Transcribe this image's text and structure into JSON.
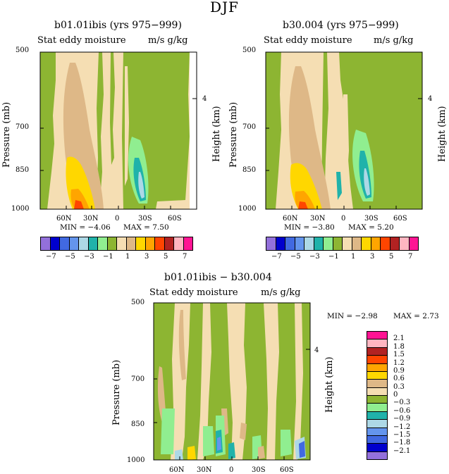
{
  "figure": {
    "title": "DJF"
  },
  "colors": {
    "levels_h": [
      "#9370DB",
      "#0000CD",
      "#4169E1",
      "#6495ED",
      "#ADD8E6",
      "#20B2AA",
      "#90EE90",
      "#8DB532",
      "#F5DEB3",
      "#DEB887",
      "#FFD700",
      "#FFA500",
      "#FF4500",
      "#B22222",
      "#FFB6C1",
      "#FF1493"
    ],
    "levels_v": [
      "#FF1493",
      "#FFB6C1",
      "#B22222",
      "#FF4500",
      "#FFA500",
      "#FFD700",
      "#DEB887",
      "#F5DEB3",
      "#8DB532",
      "#90EE90",
      "#20B2AA",
      "#ADD8E6",
      "#6495ED",
      "#4169E1",
      "#0000CD",
      "#9370DB"
    ]
  },
  "panels": [
    {
      "title": "b01.01ibis (yrs 975−999)",
      "subtitle_left": "Stat eddy moisture",
      "subtitle_right": "m/s g/kg",
      "min_label": "MIN = −4.06",
      "max_label": "MAX =  7.50"
    },
    {
      "title": "b30.004 (yrs 975−999)",
      "subtitle_left": "Stat eddy moisture",
      "subtitle_right": "m/s g/kg",
      "min_label": "MIN = −3.80",
      "max_label": "MAX =  5.20"
    },
    {
      "title": "b01.01ibis − b30.004",
      "subtitle_left": "Stat eddy moisture",
      "subtitle_right": "m/s g/kg",
      "min_label": "MIN =   −2.98",
      "max_label": "MAX =   2.73"
    }
  ],
  "axes": {
    "ylabel": "Pressure (mb)",
    "y2label": "Height (km)",
    "y_ticks": [
      "500",
      "700",
      "850",
      "1000"
    ],
    "y2_ticks": [
      "4"
    ],
    "x_ticks": [
      "60N",
      "30N",
      "0",
      "30S",
      "60S"
    ]
  },
  "legends": {
    "horizontal": {
      "labels": [
        "−7",
        "−5",
        "−3",
        "−1",
        "1",
        "3",
        "5",
        "7"
      ]
    },
    "vertical": {
      "labels": [
        "2.1",
        "1.8",
        "1.5",
        "1.2",
        "0.9",
        "0.6",
        "0.3",
        "0",
        "−0.3",
        "−0.6",
        "−0.9",
        "−1.2",
        "−1.5",
        "−1.8",
        "−2.1"
      ]
    }
  },
  "chart_data": [
    {
      "type": "heatmap",
      "title": "b01.01ibis (yrs 975−999)",
      "variable": "Stat eddy moisture",
      "units": "m/s g/kg",
      "x": {
        "label": "",
        "ticks": [
          "60N",
          "30N",
          "0",
          "30S",
          "60S"
        ],
        "range": [
          90,
          -90
        ]
      },
      "y": {
        "label": "Pressure (mb)",
        "ticks": [
          500,
          700,
          850,
          1000
        ],
        "range": [
          500,
          1000
        ]
      },
      "y2": {
        "label": "Height (km)",
        "ticks": [
          4
        ]
      },
      "min": -4.06,
      "max": 7.5,
      "contour_levels": [
        -7,
        -6,
        -5,
        -4,
        -3,
        -2,
        -1,
        0,
        1,
        2,
        3,
        4,
        5,
        6,
        7
      ]
    },
    {
      "type": "heatmap",
      "title": "b30.004 (yrs 975−999)",
      "variable": "Stat eddy moisture",
      "units": "m/s g/kg",
      "x": {
        "label": "",
        "ticks": [
          "60N",
          "30N",
          "0",
          "30S",
          "60S"
        ],
        "range": [
          90,
          -90
        ]
      },
      "y": {
        "label": "Pressure (mb)",
        "ticks": [
          500,
          700,
          850,
          1000
        ],
        "range": [
          500,
          1000
        ]
      },
      "y2": {
        "label": "Height (km)",
        "ticks": [
          4
        ]
      },
      "min": -3.8,
      "max": 5.2,
      "contour_levels": [
        -7,
        -6,
        -5,
        -4,
        -3,
        -2,
        -1,
        0,
        1,
        2,
        3,
        4,
        5,
        6,
        7
      ]
    },
    {
      "type": "heatmap",
      "title": "b01.01ibis − b30.004",
      "variable": "Stat eddy moisture",
      "units": "m/s g/kg",
      "x": {
        "label": "",
        "ticks": [
          "60N",
          "30N",
          "0",
          "30S",
          "60S"
        ],
        "range": [
          90,
          -90
        ]
      },
      "y": {
        "label": "Pressure (mb)",
        "ticks": [
          500,
          700,
          850,
          1000
        ],
        "range": [
          500,
          1000
        ]
      },
      "y2": {
        "label": "Height (km)",
        "ticks": [
          4
        ]
      },
      "min": -2.98,
      "max": 2.73,
      "contour_levels": [
        -2.1,
        -1.8,
        -1.5,
        -1.2,
        -0.9,
        -0.6,
        -0.3,
        0,
        0.3,
        0.6,
        0.9,
        1.2,
        1.5,
        1.8,
        2.1
      ]
    }
  ]
}
